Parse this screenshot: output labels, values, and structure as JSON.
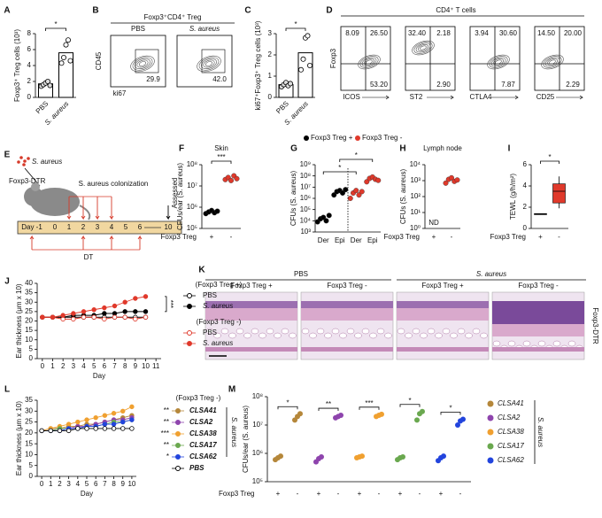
{
  "panel_labels": [
    "A",
    "B",
    "C",
    "D",
    "E",
    "F",
    "G",
    "H",
    "I",
    "J",
    "K",
    "L",
    "M"
  ],
  "flow_b": {
    "title": "Foxp3⁺CD4⁺ Treg",
    "ylabel": "CD45",
    "xlabel": "ki67",
    "plots": [
      {
        "label": "PBS",
        "value": "29.9"
      },
      {
        "label": "S. aureus",
        "value": "42.0"
      }
    ]
  },
  "flow_d": {
    "title": "CD4⁺ T cells",
    "ylabel": "Foxp3",
    "plots": [
      {
        "xlabel": "ICOS",
        "upper_left": "8.09",
        "upper_right": "26.50",
        "lower_right": "53.20"
      },
      {
        "xlabel": "ST2",
        "upper_left": "32.40",
        "upper_right": "2.18",
        "lower_right": "2.90"
      },
      {
        "xlabel": "CTLA4",
        "upper_left": "3.94",
        "upper_right": "30.60",
        "lower_right": "7.87"
      },
      {
        "xlabel": "CD25",
        "upper_left": "14.50",
        "upper_right": "20.00",
        "lower_right": "2.29"
      }
    ]
  },
  "diagram_e": {
    "bacteria": "S. aureus",
    "mouse": "Foxp3-DTR",
    "colonization": "S. aureus colonization",
    "assessed": "Assessed",
    "days": [
      "Day -1",
      "0",
      "1",
      "2",
      "3",
      "4",
      "5",
      "6",
      "10"
    ],
    "treatment": "DT"
  },
  "histology_k": {
    "groups": [
      "PBS",
      "S. aureus"
    ],
    "columns": [
      "Foxp3 Treg +",
      "Foxp3 Treg -",
      "Foxp3 Treg +",
      "Foxp3 Treg -"
    ],
    "row_label": "Foxp3-DTR"
  },
  "chart_data": [
    {
      "type": "bar",
      "ylabel": "Foxp3⁺ Treg cells (10³)",
      "categories": [
        "PBS",
        "S. aureus"
      ],
      "values": [
        1.7,
        5.6
      ],
      "points": [
        [
          1.4,
          1.6,
          1.8,
          2.0,
          1.5
        ],
        [
          4.3,
          5.0,
          6.6,
          7.2,
          4.6
        ]
      ],
      "ylim": [
        0,
        8
      ],
      "yticks": [
        0,
        2,
        4,
        6,
        8
      ],
      "significance": "*"
    },
    {
      "type": "bar",
      "ylabel": "ki67⁺Foxp3⁺ Treg cells (10³)",
      "categories": [
        "PBS",
        "S. aureus"
      ],
      "values": [
        0.6,
        2.1
      ],
      "points": [
        [
          0.5,
          0.6,
          0.7,
          0.55,
          0.65
        ],
        [
          1.3,
          1.8,
          2.8,
          2.9,
          1.5
        ]
      ],
      "ylim": [
        0,
        3
      ],
      "yticks": [
        0,
        1,
        2,
        3
      ],
      "significance": "*"
    },
    {
      "type": "strip",
      "title": "Skin",
      "ylabel": "CFUs/ear (S. aureus)",
      "log": true,
      "ylim": [
        100000,
        100000000
      ],
      "yticks": [
        {
          "value": 100000,
          "label": "10⁵"
        },
        {
          "value": 1000000,
          "label": "10⁶"
        },
        {
          "value": 10000000,
          "label": "10⁷"
        },
        {
          "value": 100000000,
          "label": "10⁸"
        }
      ],
      "xlabel": "Foxp3 Treg",
      "categories": [
        "+",
        "-"
      ],
      "points": [
        [
          500000,
          600000,
          700000,
          550000,
          650000
        ],
        [
          20000000,
          25000000,
          18000000,
          30000000,
          22000000
        ]
      ],
      "point_colors": [
        "#000000",
        "#e0392b"
      ],
      "significance": [
        "***"
      ]
    },
    {
      "type": "strip",
      "ylabel": "CFUs (S. aureus)",
      "log": true,
      "ylim": [
        1000,
        1000000000
      ],
      "yticks": [
        {
          "value": 1000,
          "label": "10³"
        },
        {
          "value": 10000,
          "label": "10⁴"
        },
        {
          "value": 100000,
          "label": "10⁵"
        },
        {
          "value": 1000000,
          "label": "10⁶"
        },
        {
          "value": 10000000,
          "label": "10⁷"
        },
        {
          "value": 100000000,
          "label": "10⁸"
        },
        {
          "value": 1000000000,
          "label": "10⁹"
        }
      ],
      "categories": [
        "Der",
        "Epi",
        "Der",
        "Epi"
      ],
      "points": [
        [
          8000,
          15000,
          20000,
          10000,
          30000
        ],
        [
          2000000,
          4000000,
          5000000,
          3000000,
          6000000
        ],
        [
          1000000,
          3000000,
          5000000,
          2000000,
          4000000
        ],
        [
          30000000,
          60000000,
          80000000,
          50000000,
          40000000
        ]
      ],
      "point_colors": [
        "#000000",
        "#000000",
        "#e0392b",
        "#e0392b"
      ],
      "legend": [
        {
          "name": "Foxp3 Treg +",
          "color": "#000000"
        },
        {
          "name": "Foxp3 Treg -",
          "color": "#e0392b"
        }
      ],
      "significance": [
        "*",
        "*"
      ]
    },
    {
      "type": "strip",
      "title": "Lymph node",
      "ylabel": "CFUs (S. aureus)",
      "log": true,
      "ylim": [
        1,
        10000
      ],
      "yticks": [
        {
          "value": 1,
          "label": "10⁰"
        },
        {
          "value": 10,
          "label": "10¹"
        },
        {
          "value": 100,
          "label": "10²"
        },
        {
          "value": 1000,
          "label": "10³"
        },
        {
          "value": 10000,
          "label": "10⁴"
        }
      ],
      "xlabel": "Foxp3 Treg",
      "categories": [
        "+",
        "-"
      ],
      "points": [
        [],
        [
          700,
          1200,
          1500,
          900,
          1100
        ]
      ],
      "point_colors": [
        "#000000",
        "#e0392b"
      ],
      "annotation": "ND"
    },
    {
      "type": "box",
      "ylabel": "TEWL (g/h/m²)",
      "ylim": [
        0,
        6
      ],
      "yticks": [
        0,
        2,
        4,
        6
      ],
      "xlabel": "Foxp3 Treg",
      "categories": [
        "+",
        "-"
      ],
      "boxes": [
        {
          "min": 1.3,
          "q1": 1.3,
          "median": 1.35,
          "q3": 1.4,
          "max": 1.4
        },
        {
          "min": 1.9,
          "q1": 2.4,
          "median": 3.5,
          "q3": 4.2,
          "max": 4.9
        }
      ],
      "colors": [
        "#000000",
        "#e0392b"
      ],
      "significance": [
        "*"
      ]
    },
    {
      "type": "line",
      "ylabel": "Ear thickness (μm x 10)",
      "xlabel": "Day",
      "x": [
        0,
        1,
        2,
        3,
        4,
        5,
        6,
        7,
        8,
        9,
        10
      ],
      "xlim": [
        -0.5,
        11.5
      ],
      "xticks": [
        0,
        1,
        2,
        3,
        4,
        5,
        6,
        7,
        8,
        9,
        10,
        11
      ],
      "ylim": [
        0,
        40
      ],
      "yticks": [
        0,
        5,
        10,
        15,
        20,
        25,
        30,
        35,
        40
      ],
      "legend_groups": [
        "(Foxp3 Treg +)",
        "(Foxp3 Treg -)"
      ],
      "significance": "***",
      "series": [
        {
          "name": "PBS",
          "color": "#000000",
          "marker": "open",
          "values": [
            22,
            22,
            22,
            22,
            22,
            22,
            22,
            22,
            22,
            22,
            22
          ]
        },
        {
          "name": "S. aureus",
          "color": "#000000",
          "marker": "filled",
          "values": [
            22,
            22,
            22,
            23,
            23,
            23,
            24,
            24,
            25,
            25,
            25
          ]
        },
        {
          "name": "PBS",
          "color": "#e0392b",
          "marker": "open",
          "values": [
            22,
            22,
            21,
            21,
            22,
            22,
            21,
            22,
            22,
            21,
            22
          ]
        },
        {
          "name": "S. aureus",
          "color": "#e0392b",
          "marker": "filled",
          "values": [
            22,
            22,
            23,
            24,
            25,
            26,
            27,
            28,
            30,
            32,
            33
          ]
        }
      ]
    },
    {
      "type": "line",
      "ylabel": "Ear thickness (μm x 10)",
      "xlabel": "Day",
      "x": [
        0,
        1,
        2,
        3,
        4,
        5,
        6,
        7,
        8,
        9,
        10
      ],
      "xlim": [
        -0.5,
        10.5
      ],
      "xticks": [
        0,
        1,
        2,
        3,
        4,
        5,
        6,
        7,
        8,
        9,
        10
      ],
      "ylim": [
        0,
        35
      ],
      "yticks": [
        0,
        5,
        10,
        15,
        20,
        25,
        30,
        35
      ],
      "legend_title": "(Foxp3 Treg -)",
      "bracket_label": "S. aureus",
      "series": [
        {
          "name": "CLSA41",
          "color": "#b5873a",
          "marker": "filled",
          "significance": "**",
          "values": [
            21,
            22,
            22,
            23,
            23,
            24,
            24,
            25,
            26,
            27,
            28
          ]
        },
        {
          "name": "CLSA2",
          "color": "#8e44ad",
          "marker": "filled",
          "significance": "**",
          "values": [
            21,
            21,
            22,
            22,
            23,
            23,
            24,
            25,
            26,
            26,
            27
          ]
        },
        {
          "name": "CLSA38",
          "color": "#f0a030",
          "marker": "filled",
          "significance": "***",
          "values": [
            21,
            22,
            23,
            24,
            25,
            26,
            27,
            28,
            29,
            30,
            32
          ]
        },
        {
          "name": "CLSA17",
          "color": "#6aa84f",
          "marker": "filled",
          "significance": "**",
          "values": [
            21,
            21,
            22,
            22,
            22,
            23,
            23,
            24,
            25,
            25,
            26
          ]
        },
        {
          "name": "CLSA62",
          "color": "#2244dd",
          "marker": "filled",
          "significance": "*",
          "values": [
            21,
            21,
            21,
            22,
            22,
            23,
            23,
            24,
            24,
            25,
            26
          ]
        },
        {
          "name": "PBS",
          "color": "#000000",
          "marker": "open",
          "values": [
            21,
            21,
            21,
            21,
            22,
            22,
            22,
            22,
            22,
            22,
            22
          ]
        }
      ]
    },
    {
      "type": "group_strip",
      "ylabel": "CFUs/ear (S. aureus)",
      "log": true,
      "ylim": [
        100000,
        100000000
      ],
      "yticks": [
        {
          "value": 100000,
          "label": "10⁵"
        },
        {
          "value": 1000000,
          "label": "10⁶"
        },
        {
          "value": 10000000,
          "label": "10⁷"
        },
        {
          "value": 100000000,
          "label": "10⁸"
        }
      ],
      "xlabel": "Foxp3 Treg",
      "categories": [
        "+",
        "-"
      ],
      "bracket_label": "S. aureus",
      "series": [
        {
          "name": "CLSA41",
          "color": "#b5873a",
          "significance": "*",
          "plus": [
            600000,
            700000,
            800000
          ],
          "minus": [
            15000000,
            20000000,
            25000000
          ]
        },
        {
          "name": "CLSA2",
          "color": "#8e44ad",
          "significance": "**",
          "plus": [
            500000,
            650000,
            750000
          ],
          "minus": [
            18000000,
            20000000,
            22000000
          ]
        },
        {
          "name": "CLSA38",
          "color": "#f0a030",
          "significance": "***",
          "plus": [
            700000,
            750000,
            800000
          ],
          "minus": [
            20000000,
            22000000,
            24000000
          ]
        },
        {
          "name": "CLSA17",
          "color": "#6aa84f",
          "significance": "*",
          "plus": [
            600000,
            700000,
            750000
          ],
          "minus": [
            15000000,
            25000000,
            30000000
          ]
        },
        {
          "name": "CLSA62",
          "color": "#2244dd",
          "significance": "*",
          "plus": [
            550000,
            700000,
            800000
          ],
          "minus": [
            10000000,
            14000000,
            16000000
          ]
        }
      ]
    }
  ]
}
